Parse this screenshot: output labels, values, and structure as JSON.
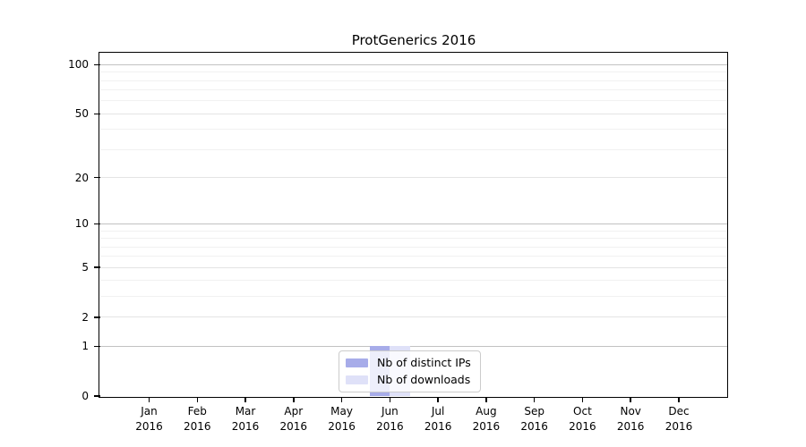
{
  "chart_data": {
    "type": "bar",
    "title": "ProtGenerics 2016",
    "x_categories": [
      "Jan",
      "Feb",
      "Mar",
      "Apr",
      "May",
      "Jun",
      "Jul",
      "Aug",
      "Sep",
      "Oct",
      "Nov",
      "Dec"
    ],
    "x_year": "2016",
    "series": [
      {
        "name": "Nb of distinct IPs",
        "color": "#a7ace9",
        "values": [
          0,
          0,
          0,
          0,
          0,
          1,
          0,
          0,
          0,
          0,
          0,
          0
        ]
      },
      {
        "name": "Nb of downloads",
        "color": "#dfe1f8",
        "values": [
          0,
          0,
          0,
          0,
          0,
          1,
          0,
          0,
          0,
          0,
          0,
          0
        ]
      }
    ],
    "y_axis": {
      "scale": "log1p",
      "max": 100,
      "ticks": [
        0,
        1,
        2,
        5,
        10,
        20,
        50,
        100
      ],
      "decade_gridlines": [
        1,
        10,
        100
      ],
      "major_gridlines": [
        2,
        5,
        20,
        50
      ],
      "minor_gridlines": [
        3,
        4,
        6,
        7,
        8,
        9,
        30,
        40,
        60,
        70,
        80,
        90
      ]
    },
    "legend": {
      "position": "bottom-center"
    },
    "grid": true,
    "colors": {
      "axis": "#000000",
      "decade_grid": "#c2c2c2",
      "major_grid": "#e4e4e4",
      "minor_grid": "#f1f1f1",
      "legend_border": "#cccccc",
      "text": "#000000"
    }
  }
}
